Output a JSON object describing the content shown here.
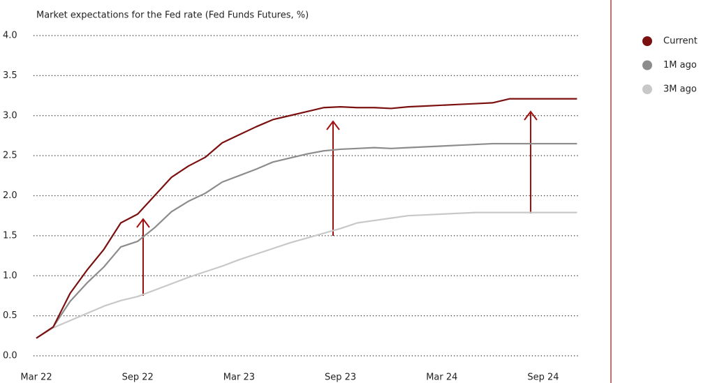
{
  "chart_data": {
    "type": "line",
    "title": "Market expectations for the Fed rate (Fed Funds Futures, %)",
    "categories": [
      "Mar 22",
      null,
      null,
      null,
      null,
      null,
      "Sep 22",
      null,
      null,
      null,
      null,
      null,
      "Mar 23",
      null,
      null,
      null,
      null,
      null,
      "Sep 23",
      null,
      null,
      null,
      null,
      null,
      "Mar 24",
      null,
      null,
      null,
      null,
      null,
      "Sep 24",
      null,
      null
    ],
    "series": [
      {
        "name": "Current",
        "color": "#7b1010",
        "values": [
          0.22,
          0.36,
          0.78,
          1.07,
          1.33,
          1.66,
          1.77,
          2.0,
          2.23,
          2.37,
          2.48,
          2.66,
          2.76,
          2.86,
          2.95,
          3.0,
          3.05,
          3.1,
          3.11,
          3.1,
          3.1,
          3.09,
          3.11,
          3.12,
          3.13,
          3.14,
          3.15,
          3.16,
          3.21,
          3.21,
          3.21,
          3.21,
          3.21
        ]
      },
      {
        "name": "1M ago",
        "color": "#8c8c8c",
        "values": [
          0.22,
          0.36,
          0.68,
          0.91,
          1.11,
          1.36,
          1.43,
          1.6,
          1.8,
          1.93,
          2.03,
          2.17,
          2.25,
          2.33,
          2.42,
          2.47,
          2.52,
          2.56,
          2.58,
          2.59,
          2.6,
          2.59,
          2.6,
          2.61,
          2.62,
          2.63,
          2.64,
          2.65,
          2.65,
          2.65,
          2.65,
          2.65,
          2.65
        ]
      },
      {
        "name": "3M ago",
        "color": "#c8c8c8",
        "values": [
          0.22,
          0.35,
          0.44,
          0.53,
          0.62,
          0.69,
          0.74,
          0.82,
          0.9,
          0.98,
          1.05,
          1.12,
          1.2,
          1.27,
          1.34,
          1.41,
          1.47,
          1.53,
          1.59,
          1.66,
          1.69,
          1.72,
          1.75,
          1.76,
          1.77,
          1.78,
          1.79,
          1.79,
          1.79,
          1.79,
          1.79,
          1.79,
          1.79
        ]
      }
    ],
    "ylim": [
      0,
      4
    ],
    "yticks": [
      {
        "value": 0,
        "label": "0.0"
      },
      0.5,
      {
        "value": 1,
        "label": "1.0"
      },
      1.5,
      {
        "value": 2,
        "label": "2.0"
      },
      2.5,
      {
        "value": 3,
        "label": "3.0"
      },
      3.5,
      {
        "value": 4,
        "label": "4.0"
      }
    ],
    "grid": true,
    "legend": "right"
  }
}
